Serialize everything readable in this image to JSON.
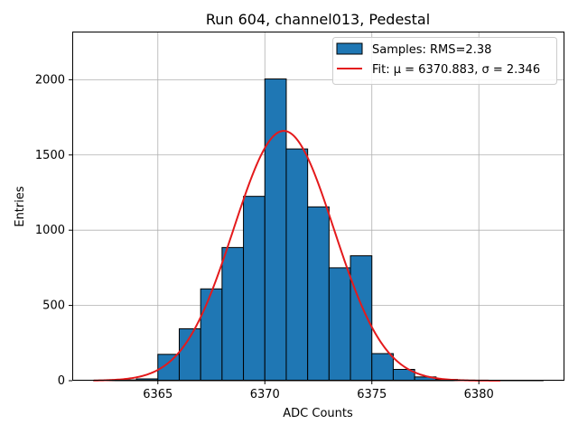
{
  "chart_data": {
    "type": "bar",
    "title": "Run 604, channel013, Pedestal",
    "xlabel": "ADC Counts",
    "ylabel": "Entries",
    "xlim": [
      6361,
      6384
    ],
    "ylim": [
      0,
      2320
    ],
    "x_ticks": [
      6365,
      6370,
      6375,
      6380
    ],
    "y_ticks": [
      0,
      500,
      1000,
      1500,
      2000
    ],
    "grid": true,
    "legend_placement": "top-right",
    "series": [
      {
        "name": "Samples: RMS=2.38",
        "kind": "histogram",
        "color": "#1f77b4",
        "edge_color": "#000000",
        "bins": [
          {
            "x0": 6362,
            "x1": 6363,
            "value": 3
          },
          {
            "x0": 6363,
            "x1": 6364,
            "value": 5
          },
          {
            "x0": 6364,
            "x1": 6365,
            "value": 12
          },
          {
            "x0": 6365,
            "x1": 6366,
            "value": 175
          },
          {
            "x0": 6366,
            "x1": 6367,
            "value": 345
          },
          {
            "x0": 6367,
            "x1": 6368,
            "value": 610
          },
          {
            "x0": 6368,
            "x1": 6369,
            "value": 885
          },
          {
            "x0": 6369,
            "x1": 6370,
            "value": 1225
          },
          {
            "x0": 6370,
            "x1": 6371,
            "value": 2005
          },
          {
            "x0": 6371,
            "x1": 6372,
            "value": 1540
          },
          {
            "x0": 6372,
            "x1": 6373,
            "value": 1155
          },
          {
            "x0": 6373,
            "x1": 6374,
            "value": 750
          },
          {
            "x0": 6374,
            "x1": 6375,
            "value": 830
          },
          {
            "x0": 6375,
            "x1": 6376,
            "value": 180
          },
          {
            "x0": 6376,
            "x1": 6377,
            "value": 75
          },
          {
            "x0": 6377,
            "x1": 6378,
            "value": 25
          },
          {
            "x0": 6378,
            "x1": 6379,
            "value": 8
          },
          {
            "x0": 6379,
            "x1": 6380,
            "value": 3
          },
          {
            "x0": 6380,
            "x1": 6381,
            "value": 2
          },
          {
            "x0": 6381,
            "x1": 6382,
            "value": 1
          },
          {
            "x0": 6382,
            "x1": 6383,
            "value": 1
          }
        ]
      },
      {
        "name": "Fit: μ = 6370.883, σ = 2.346",
        "kind": "gaussian_fit",
        "color": "#e41a1c",
        "mu": 6370.883,
        "sigma": 2.346,
        "amplitude": 1660,
        "x_range": [
          6362,
          6381
        ]
      }
    ]
  }
}
